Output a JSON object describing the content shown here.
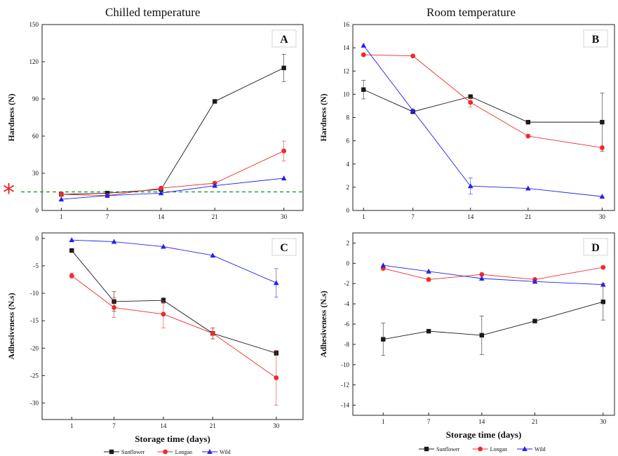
{
  "figure": {
    "left_column_title": "Chilled temperature",
    "right_column_title": "Room temperature",
    "reference_marker": "*"
  },
  "chart_data": [
    {
      "id": "A",
      "type": "line",
      "panel_label": "A",
      "x": [
        1,
        7,
        14,
        21,
        30
      ],
      "x_ticks": [
        1,
        7,
        14,
        21,
        30
      ],
      "ylabel": "Hardness (N)",
      "xlabel": "",
      "ylim": [
        0,
        150
      ],
      "y_ticks": [
        0,
        30,
        60,
        90,
        120,
        150
      ],
      "reference_line": 15,
      "series": [
        {
          "name": "Sunflower",
          "color": "#1a1a1a",
          "marker": "square",
          "values": [
            13,
            14,
            17,
            88,
            115
          ],
          "errors": [
            0,
            0,
            0,
            0,
            11
          ]
        },
        {
          "name": "Longan",
          "color": "#ee2b2b",
          "marker": "circle",
          "values": [
            13,
            12,
            18,
            22,
            48
          ],
          "errors": [
            0,
            0,
            0,
            0,
            8
          ]
        },
        {
          "name": "Wild",
          "color": "#2222ee",
          "marker": "triangle",
          "values": [
            9,
            12,
            14,
            20,
            26
          ],
          "errors": [
            0,
            0,
            0,
            0,
            0
          ]
        }
      ]
    },
    {
      "id": "B",
      "type": "line",
      "panel_label": "B",
      "x": [
        1,
        7,
        14,
        21,
        30
      ],
      "x_ticks": [
        1,
        7,
        14,
        21,
        30
      ],
      "ylabel": "Hardness (N)",
      "xlabel": "",
      "ylim": [
        0,
        16
      ],
      "y_ticks": [
        0,
        2,
        4,
        6,
        8,
        10,
        12,
        14,
        16
      ],
      "series": [
        {
          "name": "Sunflower",
          "color": "#1a1a1a",
          "marker": "square",
          "values": [
            10.4,
            8.5,
            9.8,
            7.6,
            7.6
          ],
          "errors": [
            0.8,
            0,
            0,
            0,
            2.5
          ]
        },
        {
          "name": "Longan",
          "color": "#ee2b2b",
          "marker": "circle",
          "values": [
            13.4,
            13.3,
            9.3,
            6.4,
            5.4
          ],
          "errors": [
            0,
            0,
            0.4,
            0,
            0
          ]
        },
        {
          "name": "Wild",
          "color": "#2222ee",
          "marker": "triangle",
          "values": [
            14.2,
            8.6,
            2.1,
            1.9,
            1.2
          ],
          "errors": [
            0,
            0,
            0.7,
            0,
            0
          ]
        }
      ]
    },
    {
      "id": "C",
      "type": "line",
      "panel_label": "C",
      "x": [
        1,
        7,
        14,
        21,
        30
      ],
      "x_ticks": [
        1,
        7,
        14,
        21,
        30
      ],
      "ylabel": "Adhesiveness (N.s)",
      "xlabel": "Storage time (days)",
      "ylim": [
        -33,
        1
      ],
      "y_ticks": [
        0,
        -5,
        -10,
        -15,
        -20,
        -25,
        -30
      ],
      "series": [
        {
          "name": "Sunflower",
          "color": "#1a1a1a",
          "marker": "square",
          "values": [
            -2.2,
            -11.5,
            -11.3,
            -17.3,
            -20.9
          ],
          "errors": [
            0,
            1.8,
            0.5,
            1.0,
            0.4
          ]
        },
        {
          "name": "Longan",
          "color": "#ee2b2b",
          "marker": "circle",
          "values": [
            -6.8,
            -12.6,
            -13.8,
            -17.3,
            -25.4
          ],
          "errors": [
            0.5,
            1.8,
            2.5,
            1.0,
            5.0
          ]
        },
        {
          "name": "Wild",
          "color": "#2222ee",
          "marker": "triangle",
          "values": [
            -0.3,
            -0.6,
            -1.5,
            -3.1,
            -8.1
          ],
          "errors": [
            0,
            0,
            0,
            0,
            2.6
          ]
        }
      ]
    },
    {
      "id": "D",
      "type": "line",
      "panel_label": "D",
      "x": [
        1,
        7,
        14,
        21,
        30
      ],
      "x_ticks": [
        1,
        7,
        14,
        21,
        30
      ],
      "ylabel": "Adhesiveness (N.s)",
      "xlabel": "Storage time (days)",
      "ylim": [
        -15,
        3
      ],
      "y_ticks": [
        2,
        0,
        -2,
        -4,
        -6,
        -8,
        -10,
        -12,
        -14
      ],
      "series": [
        {
          "name": "Sunflower",
          "color": "#1a1a1a",
          "marker": "square",
          "values": [
            -7.5,
            -6.7,
            -7.1,
            -5.7,
            -3.8
          ],
          "errors": [
            1.6,
            0,
            1.9,
            0,
            1.8
          ]
        },
        {
          "name": "Longan",
          "color": "#ee2b2b",
          "marker": "circle",
          "values": [
            -0.5,
            -1.6,
            -1.1,
            -1.6,
            -0.4
          ],
          "errors": [
            0,
            0,
            0,
            0,
            0
          ]
        },
        {
          "name": "Wild",
          "color": "#2222ee",
          "marker": "triangle",
          "values": [
            -0.2,
            -0.8,
            -1.5,
            -1.8,
            -2.1
          ],
          "errors": [
            0,
            0,
            0,
            0,
            0
          ]
        }
      ]
    }
  ]
}
